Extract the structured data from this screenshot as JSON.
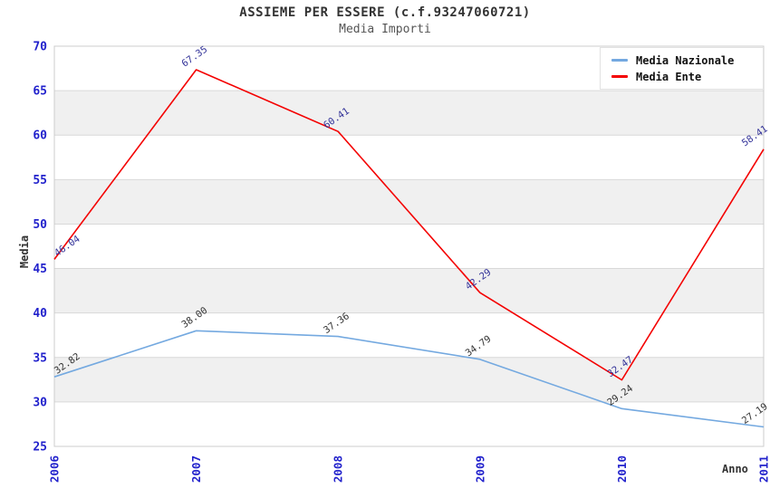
{
  "chart_data": {
    "type": "line",
    "title": "ASSIEME PER ESSERE (c.f.93247060721)",
    "subtitle": "Media Importi",
    "xlabel": "Anno",
    "ylabel": "Media",
    "categories": [
      2006,
      2007,
      2008,
      2009,
      2010,
      2011
    ],
    "series": [
      {
        "name": "Media Nazionale",
        "color": "#74a9e0",
        "label_color": "#333333",
        "values": [
          32.82,
          38.0,
          37.36,
          34.79,
          29.24,
          27.19
        ]
      },
      {
        "name": "Media Ente",
        "color": "#f40000",
        "label_color": "#333399",
        "values": [
          46.04,
          67.35,
          60.41,
          42.29,
          32.47,
          58.41
        ]
      }
    ],
    "ylim": [
      25,
      70
    ],
    "ytick_step": 5,
    "grid": "horizontal",
    "bands": "alternating",
    "legend_position": "top-right",
    "colors": {
      "tick": "#2222cc",
      "grid": "#d9d9d9",
      "band": "#f0f0f0",
      "border": "#cccccc"
    }
  }
}
